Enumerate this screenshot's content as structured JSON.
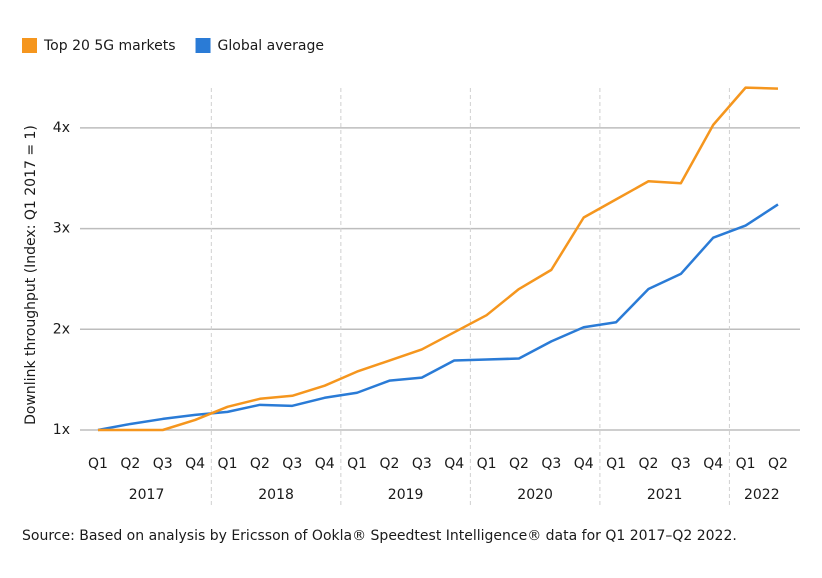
{
  "chart_data": {
    "type": "line",
    "y_label": "Downlink throughput (Index: Q1 2017 = 1)",
    "source": "Source: Based on analysis by Ericsson of Ookla® Speedtest Intelligence® data for Q1 2017–Q2 2022.",
    "groups": [
      {
        "label": "2017",
        "categories": [
          "Q1",
          "Q2",
          "Q3",
          "Q4"
        ]
      },
      {
        "label": "2018",
        "categories": [
          "Q1",
          "Q2",
          "Q3",
          "Q4"
        ]
      },
      {
        "label": "2019",
        "categories": [
          "Q1",
          "Q2",
          "Q3",
          "Q4"
        ]
      },
      {
        "label": "2020",
        "categories": [
          "Q1",
          "Q2",
          "Q3",
          "Q4"
        ]
      },
      {
        "label": "2021",
        "categories": [
          "Q1",
          "Q2",
          "Q3",
          "Q4"
        ]
      },
      {
        "label": "2022",
        "categories": [
          "Q1",
          "Q2"
        ]
      }
    ],
    "series": [
      {
        "name": "Top 20 5G markets",
        "color": "#f5961e",
        "values": [
          1.0,
          1.0,
          1.0,
          1.1,
          1.23,
          1.31,
          1.34,
          1.44,
          1.58,
          1.69,
          1.8,
          1.97,
          2.14,
          2.4,
          2.59,
          3.11,
          3.29,
          3.47,
          3.45,
          4.03,
          4.4,
          4.39
        ]
      },
      {
        "name": "Global average",
        "color": "#2a7bd6",
        "values": [
          1.0,
          1.06,
          1.11,
          1.15,
          1.18,
          1.25,
          1.24,
          1.32,
          1.37,
          1.49,
          1.52,
          1.69,
          1.7,
          1.71,
          1.88,
          2.02,
          2.07,
          2.4,
          2.55,
          2.91,
          3.03,
          3.24
        ]
      }
    ],
    "ylim": [
      1,
      4.5
    ],
    "yticks": [
      {
        "value": 1,
        "label": "1x"
      },
      {
        "value": 2,
        "label": "2x"
      },
      {
        "value": 3,
        "label": "3x"
      },
      {
        "value": 4,
        "label": "4x"
      }
    ],
    "grid": true
  }
}
